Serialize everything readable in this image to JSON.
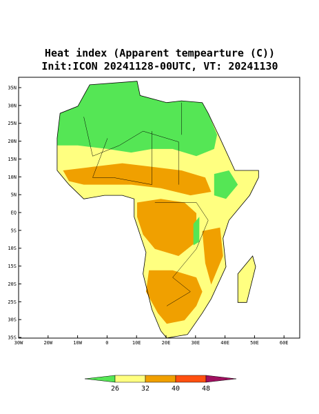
{
  "title": "Heat index (Apparent tempearture (C))",
  "subtitle": "Init:ICON 20241128-00UTC, VT: 20241130",
  "lat_labels": [
    "35N",
    "30N",
    "25N",
    "20N",
    "15N",
    "10N",
    "5N",
    "EQ",
    "5S",
    "10S",
    "15S",
    "20S",
    "25S",
    "30S",
    "35S"
  ],
  "lon_labels": [
    "30W",
    "20W",
    "10W",
    "0",
    "10E",
    "20E",
    "30E",
    "40E",
    "50E",
    "60E"
  ],
  "colorbar": {
    "ticks": [
      26,
      32,
      40,
      48
    ],
    "colors": [
      "#55e655",
      "#ffff80",
      "#f0a000",
      "#ff5010",
      "#a01060"
    ]
  }
}
